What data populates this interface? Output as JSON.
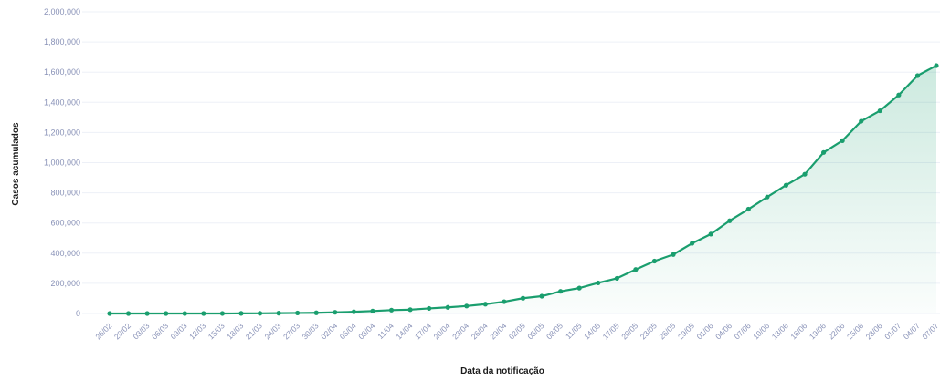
{
  "chart_data": {
    "type": "area",
    "xlabel": "Data da notificação",
    "ylabel": "Casos acumulados",
    "ylim": [
      0,
      2000000
    ],
    "ytick_values": [
      0,
      200000,
      400000,
      600000,
      800000,
      1000000,
      1200000,
      1400000,
      1600000,
      1800000,
      2000000
    ],
    "ytick_labels": [
      "0",
      "200,000",
      "400,000",
      "600,000",
      "800,000",
      "1,000,000",
      "1,200,000",
      "1,400,000",
      "1,600,000",
      "1,800,000",
      "2,000,000"
    ],
    "grid": true,
    "legend": "none",
    "line_color": "#1a9e6e",
    "fill_color": "#1a9e6e",
    "xtick_labels": [
      "26/02",
      "29/02",
      "03/03",
      "06/03",
      "09/03",
      "12/03",
      "15/03",
      "18/03",
      "21/03",
      "24/03",
      "27/03",
      "30/03",
      "02/04",
      "05/04",
      "08/04",
      "11/04",
      "14/04",
      "17/04",
      "20/04",
      "23/04",
      "26/04",
      "29/04",
      "02/05",
      "05/05",
      "08/05",
      "11/05",
      "14/05",
      "17/05",
      "20/05",
      "23/05",
      "26/05",
      "29/05",
      "01/06",
      "04/06",
      "07/06",
      "10/06",
      "13/06",
      "16/06",
      "19/06",
      "22/06",
      "25/06",
      "28/06",
      "01/07",
      "04/07",
      "07/07"
    ],
    "x": [
      "26/02",
      "29/02",
      "03/03",
      "06/03",
      "09/03",
      "12/03",
      "15/03",
      "18/03",
      "21/03",
      "24/03",
      "27/03",
      "30/03",
      "02/04",
      "05/04",
      "08/04",
      "11/04",
      "14/04",
      "17/04",
      "20/04",
      "23/04",
      "26/04",
      "29/04",
      "02/05",
      "05/05",
      "08/05",
      "11/05",
      "14/05",
      "17/05",
      "20/05",
      "23/05",
      "26/05",
      "29/05",
      "01/06",
      "04/06",
      "07/06",
      "10/06",
      "13/06",
      "16/06",
      "19/06",
      "22/06",
      "25/06",
      "28/06",
      "01/07",
      "04/07",
      "07/07"
    ],
    "series": [
      {
        "values": [
          1,
          2,
          3,
          14,
          25,
          77,
          200,
          529,
          1128,
          2271,
          3417,
          4579,
          7910,
          11130,
          16170,
          22169,
          25262,
          33682,
          40581,
          49492,
          61888,
          78162,
          101147,
          114715,
          146894,
          168331,
          202918,
          233142,
          291579,
          347398,
          391222,
          465166,
          526447,
          614941,
          691758,
          772416,
          850514,
          923189,
          1067579,
          1145906,
          1274974,
          1344143,
          1448753,
          1577004,
          1643539
        ]
      }
    ]
  }
}
